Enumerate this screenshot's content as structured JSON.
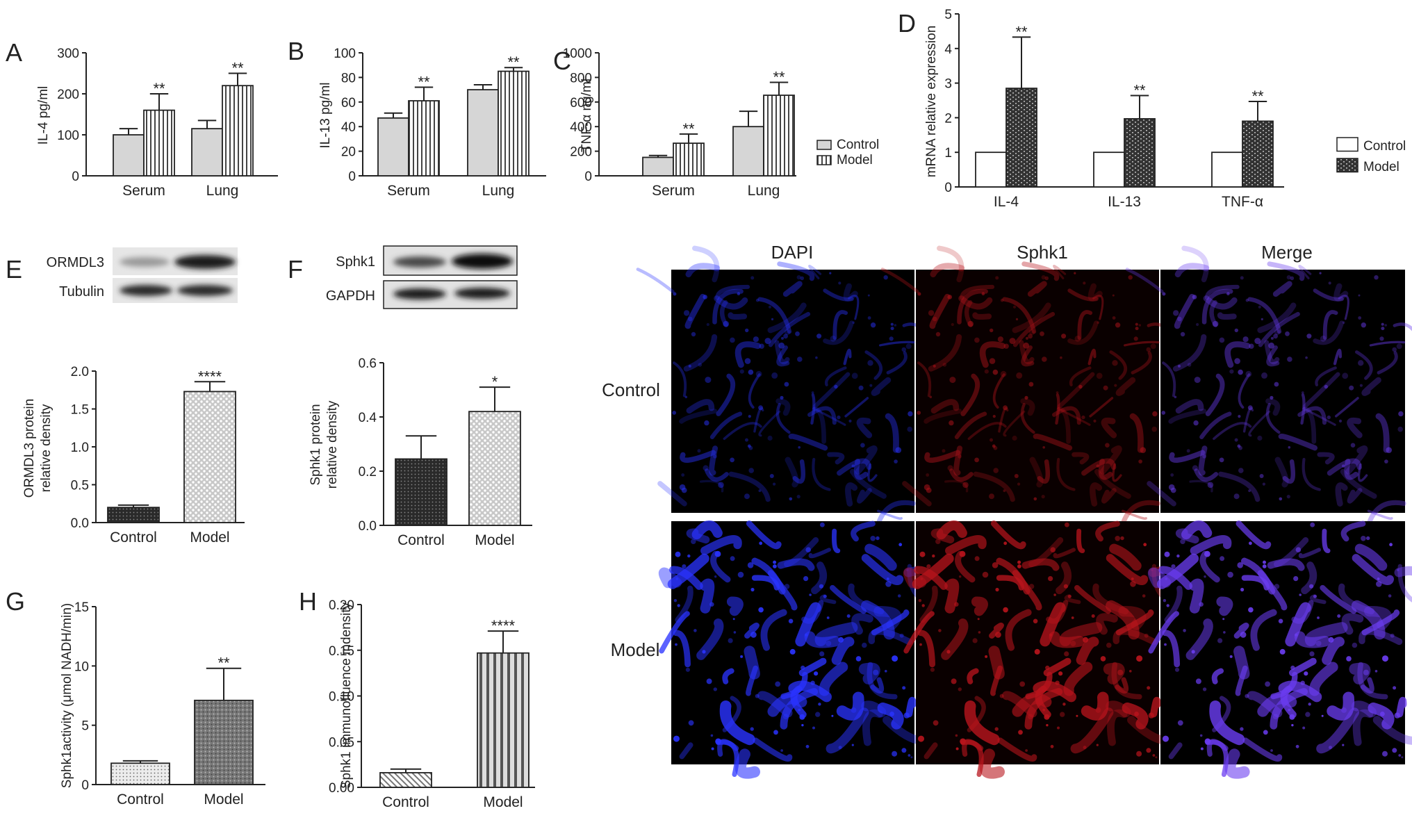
{
  "panels": [
    {
      "letter": "A"
    },
    {
      "letter": "B"
    },
    {
      "letter": "C"
    },
    {
      "letter": "D"
    },
    {
      "letter": "E"
    },
    {
      "letter": "F"
    },
    {
      "letter": "G"
    },
    {
      "letter": "H"
    }
  ],
  "chart_data": [
    {
      "id": "A",
      "type": "bar",
      "ylabel": "IL-4 pg/ml",
      "categories": [
        "Serum",
        "Lung"
      ],
      "ylim": [
        0,
        300
      ],
      "yticks": [
        "0",
        "100",
        "200",
        "300"
      ],
      "series": [
        {
          "name": "Control",
          "values": [
            100,
            115
          ],
          "errors": [
            15,
            20
          ],
          "stars": [
            "",
            ""
          ]
        },
        {
          "name": "Model",
          "values": [
            160,
            220
          ],
          "errors": [
            40,
            30
          ],
          "stars": [
            "**",
            "**"
          ]
        }
      ]
    },
    {
      "id": "B",
      "type": "bar",
      "ylabel": "IL-13 pg/ml",
      "categories": [
        "Serum",
        "Lung"
      ],
      "ylim": [
        0,
        100
      ],
      "yticks": [
        "0",
        "20",
        "40",
        "60",
        "80",
        "100"
      ],
      "series": [
        {
          "name": "Control",
          "values": [
            47,
            70
          ],
          "errors": [
            4,
            4
          ],
          "stars": [
            "",
            ""
          ]
        },
        {
          "name": "Model",
          "values": [
            61,
            85
          ],
          "errors": [
            11,
            3
          ],
          "stars": [
            "**",
            "**"
          ]
        }
      ]
    },
    {
      "id": "C",
      "type": "bar",
      "ylabel": "TNF-α ng/ml",
      "categories": [
        "Serum",
        "Lung"
      ],
      "ylim": [
        0,
        1000
      ],
      "yticks": [
        "0",
        "200",
        "400",
        "600",
        "800",
        "1000"
      ],
      "legend": [
        "Control",
        "Model"
      ],
      "series": [
        {
          "name": "Control",
          "values": [
            150,
            400
          ],
          "errors": [
            15,
            125
          ],
          "stars": [
            "",
            ""
          ]
        },
        {
          "name": "Model",
          "values": [
            265,
            655
          ],
          "errors": [
            75,
            105
          ],
          "stars": [
            "**",
            "**"
          ]
        }
      ]
    },
    {
      "id": "D",
      "type": "bar",
      "ylabel": "mRNA relative expression",
      "categories": [
        "IL-4",
        "IL-13",
        "TNF-α"
      ],
      "ylim": [
        0,
        5
      ],
      "yticks": [
        "0",
        "1",
        "2",
        "3",
        "4",
        "5"
      ],
      "legend": [
        "Control",
        "Model"
      ],
      "series": [
        {
          "name": "Control",
          "values": [
            1,
            1,
            1
          ],
          "errors": [
            0,
            0,
            0
          ],
          "stars": [
            "",
            "",
            ""
          ]
        },
        {
          "name": "Model",
          "values": [
            2.85,
            1.97,
            1.9
          ],
          "errors": [
            1.48,
            0.67,
            0.57
          ],
          "stars": [
            "**",
            "**",
            "**"
          ]
        }
      ]
    },
    {
      "id": "E",
      "type": "bar",
      "ylabel": [
        "ORMDL3 protein",
        "relative density"
      ],
      "categories": [
        "Control",
        "Model"
      ],
      "ylim": [
        0,
        2.0
      ],
      "yticks": [
        "0.0",
        "0.5",
        "1.0",
        "1.5",
        "2.0"
      ],
      "values": [
        0.2,
        1.73
      ],
      "errors": [
        0.03,
        0.13
      ],
      "stars": [
        "",
        "****"
      ]
    },
    {
      "id": "F",
      "type": "bar",
      "ylabel": [
        "Sphk1 protein",
        "relative density"
      ],
      "categories": [
        "Control",
        "Model"
      ],
      "ylim": [
        0,
        0.6
      ],
      "yticks": [
        "0.0",
        "0.2",
        "0.4",
        "0.6"
      ],
      "values": [
        0.245,
        0.42
      ],
      "errors": [
        0.085,
        0.09
      ],
      "stars": [
        "",
        "*"
      ]
    },
    {
      "id": "G",
      "type": "bar",
      "ylabel": "Sphk1activity (μmol NADH/min)",
      "categories": [
        "Control",
        "Model"
      ],
      "ylim": [
        0,
        15
      ],
      "yticks": [
        "0",
        "5",
        "10",
        "15"
      ],
      "values": [
        1.8,
        7.1
      ],
      "errors": [
        0.2,
        2.7
      ],
      "stars": [
        "",
        "**"
      ]
    },
    {
      "id": "H",
      "type": "bar",
      "ylabel": "Sphk1 immunofluence indensity",
      "categories": [
        "Control",
        "Model"
      ],
      "ylim": [
        0,
        0.2
      ],
      "yticks": [
        "0.00",
        "0.05",
        "0.10",
        "0.15",
        "0.20"
      ],
      "values": [
        0.016,
        0.147
      ],
      "errors": [
        0.004,
        0.024
      ],
      "stars": [
        "",
        "****"
      ]
    }
  ],
  "blots": {
    "E": {
      "bands": [
        "ORMDL3",
        "Tubulin"
      ]
    },
    "F": {
      "bands": [
        "Sphk1",
        "GAPDH"
      ]
    }
  },
  "microscopy": {
    "columns": [
      "DAPI",
      "Sphk1",
      "Merge"
    ],
    "rows": [
      "Control",
      "Model"
    ],
    "colors": {
      "dapi": "#2a33ff",
      "sphk1": "#b8141c",
      "merge": "#6a3cf0"
    }
  }
}
